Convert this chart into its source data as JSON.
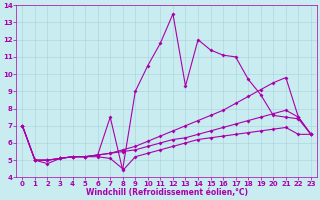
{
  "xlabel": "Windchill (Refroidissement éolien,°C)",
  "xlim": [
    -0.5,
    23.5
  ],
  "ylim": [
    4,
    14
  ],
  "xticks": [
    0,
    1,
    2,
    3,
    4,
    5,
    6,
    7,
    8,
    9,
    10,
    11,
    12,
    13,
    14,
    15,
    16,
    17,
    18,
    19,
    20,
    21,
    22,
    23
  ],
  "yticks": [
    4,
    5,
    6,
    7,
    8,
    9,
    10,
    11,
    12,
    13,
    14
  ],
  "background_color": "#c8ecf0",
  "line_color": "#aa00aa",
  "grid_color": "#a8d0dc",
  "line1_y": [
    7.0,
    5.0,
    4.8,
    5.1,
    5.2,
    5.2,
    5.2,
    5.1,
    4.5,
    9.0,
    10.5,
    11.8,
    13.5,
    9.3,
    12.0,
    11.4,
    11.1,
    11.0,
    9.7,
    8.8,
    7.6,
    7.5,
    7.4,
    6.5
  ],
  "line2_y": [
    7.0,
    5.0,
    5.0,
    5.1,
    5.2,
    5.2,
    5.3,
    7.5,
    4.4,
    5.2,
    5.4,
    5.6,
    5.8,
    6.0,
    6.2,
    6.3,
    6.4,
    6.5,
    6.6,
    6.7,
    6.8,
    6.9,
    6.5,
    6.5
  ],
  "line3_y": [
    7.0,
    5.0,
    5.0,
    5.1,
    5.2,
    5.2,
    5.3,
    5.4,
    5.5,
    5.6,
    5.8,
    6.0,
    6.2,
    6.3,
    6.5,
    6.7,
    6.9,
    7.1,
    7.3,
    7.5,
    7.7,
    7.9,
    7.5,
    6.5
  ],
  "line4_y": [
    7.0,
    5.0,
    5.0,
    5.1,
    5.2,
    5.2,
    5.3,
    5.4,
    5.6,
    5.8,
    6.1,
    6.4,
    6.7,
    7.0,
    7.3,
    7.6,
    7.9,
    8.3,
    8.7,
    9.1,
    9.5,
    9.8,
    7.5,
    6.5
  ],
  "markersize": 2.0,
  "linewidth": 0.8,
  "tick_fontsize": 5,
  "label_fontsize": 5.5
}
